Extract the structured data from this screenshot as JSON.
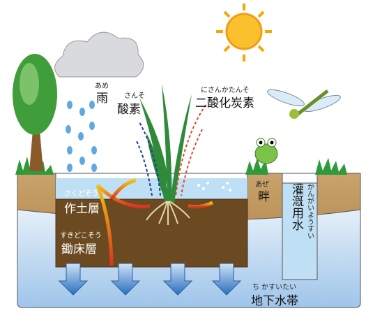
{
  "labels": [
    {
      "reading": "あめ",
      "text": "雨"
    },
    {
      "reading": "さんそ",
      "text": "酸素"
    },
    {
      "reading": "にさんかたんそ",
      "text": "二酸化炭素"
    },
    {
      "reading": "あぜ",
      "text": "畔"
    },
    {
      "reading": "かんがいようすい",
      "text": "灌漑用水"
    },
    {
      "reading": "さくどそう",
      "text": "作土層"
    },
    {
      "reading": "すきどこそう",
      "text": "鋤床層"
    },
    {
      "reading": "ち かすいたい",
      "text": "地下水帯"
    }
  ]
}
